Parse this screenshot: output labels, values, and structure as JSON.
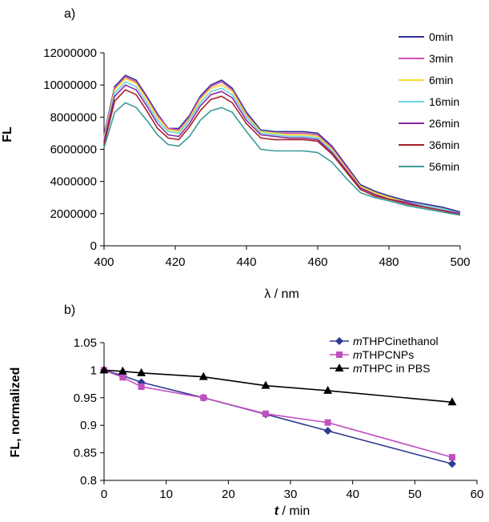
{
  "chart_data": [
    {
      "panel_label": "a)",
      "type": "line",
      "xlabel": "λ / nm",
      "ylabel": "FL",
      "xlim": [
        400,
        500
      ],
      "ylim": [
        0,
        12000000
      ],
      "xticks": [
        "400",
        "420",
        "440",
        "460",
        "480",
        "500"
      ],
      "yticks": [
        "0",
        "2000000",
        "4000000",
        "6000000",
        "8000000",
        "10000000",
        "12000000"
      ],
      "grid": false,
      "legend_position": "top-right",
      "x": [
        400,
        403,
        406,
        409,
        412,
        415,
        418,
        421,
        424,
        427,
        430,
        433,
        436,
        440,
        444,
        448,
        452,
        456,
        460,
        464,
        468,
        472,
        476,
        480,
        485,
        490,
        495,
        500
      ],
      "series": [
        {
          "name": "0min",
          "color": "#2e3192",
          "values": [
            6900000,
            9900000,
            10600000,
            10300000,
            9300000,
            8200000,
            7300000,
            7300000,
            8100000,
            9300000,
            10000000,
            10300000,
            9800000,
            8300000,
            7200000,
            7100000,
            7100000,
            7100000,
            7000000,
            6200000,
            5000000,
            3800000,
            3400000,
            3100000,
            2800000,
            2600000,
            2400000,
            2100000
          ]
        },
        {
          "name": "3min",
          "color": "#d44fb4",
          "values": [
            6800000,
            9800000,
            10500000,
            10200000,
            9200000,
            8100000,
            7300000,
            7200000,
            8000000,
            9200000,
            9900000,
            10200000,
            9700000,
            8200000,
            7100000,
            7000000,
            7000000,
            7000000,
            6900000,
            6100000,
            4900000,
            3700000,
            3300000,
            3000000,
            2700000,
            2500000,
            2300000,
            2000000
          ]
        },
        {
          "name": "6min",
          "color": "#f0dc2a",
          "values": [
            6700000,
            9700000,
            10400000,
            10100000,
            9100000,
            8000000,
            7200000,
            7100000,
            7900000,
            9100000,
            9800000,
            10000000,
            9600000,
            8100000,
            7100000,
            7000000,
            6900000,
            6900000,
            6800000,
            6000000,
            4800000,
            3700000,
            3300000,
            3000000,
            2700000,
            2500000,
            2300000,
            2000000
          ]
        },
        {
          "name": "16min",
          "color": "#6cd4e8",
          "values": [
            6600000,
            9500000,
            10200000,
            9900000,
            8900000,
            7800000,
            7100000,
            7000000,
            7800000,
            8900000,
            9600000,
            9800000,
            9400000,
            8000000,
            7000000,
            6900000,
            6800000,
            6800000,
            6700000,
            5900000,
            4700000,
            3600000,
            3200000,
            2900000,
            2700000,
            2500000,
            2300000,
            2000000
          ]
        },
        {
          "name": "26min",
          "color": "#8a2a9a",
          "values": [
            6500000,
            9300000,
            10000000,
            9700000,
            8700000,
            7600000,
            6900000,
            6800000,
            7600000,
            8700000,
            9400000,
            9600000,
            9200000,
            7800000,
            6900000,
            6800000,
            6700000,
            6700000,
            6600000,
            5800000,
            4700000,
            3600000,
            3200000,
            2900000,
            2700000,
            2400000,
            2200000,
            2000000
          ]
        },
        {
          "name": "36min",
          "color": "#a8202a",
          "values": [
            6300000,
            9000000,
            9700000,
            9400000,
            8400000,
            7300000,
            6700000,
            6600000,
            7400000,
            8400000,
            9100000,
            9300000,
            8900000,
            7600000,
            6700000,
            6600000,
            6600000,
            6600000,
            6500000,
            5700000,
            4600000,
            3500000,
            3100000,
            2900000,
            2600000,
            2400000,
            2200000,
            1900000
          ]
        },
        {
          "name": "56min",
          "color": "#3a9a96",
          "values": [
            6100000,
            8300000,
            8900000,
            8600000,
            7800000,
            6900000,
            6300000,
            6200000,
            6800000,
            7800000,
            8400000,
            8600000,
            8300000,
            7100000,
            6000000,
            5900000,
            5900000,
            5900000,
            5800000,
            5200000,
            4200000,
            3300000,
            3000000,
            2800000,
            2500000,
            2300000,
            2100000,
            1900000
          ]
        }
      ]
    },
    {
      "panel_label": "b)",
      "type": "line",
      "xlabel_italic": "t",
      "xlabel_rest": " / min",
      "ylabel": "FL, normalized",
      "xlim": [
        0,
        60
      ],
      "ylim": [
        0.8,
        1.05
      ],
      "xticks": [
        "0",
        "10",
        "20",
        "30",
        "40",
        "50",
        "60"
      ],
      "yticks": [
        "0.8",
        "0.85",
        "0.9",
        "0.95",
        "1",
        "1.05"
      ],
      "grid": false,
      "legend_position": "top-right",
      "series": [
        {
          "name_italic": "m",
          "name_rest": "THPCinethanol",
          "color": "#2e3a92",
          "marker": "diamond",
          "x": [
            0,
            3,
            6,
            16,
            26,
            36,
            56
          ],
          "values": [
            1.0,
            0.99,
            0.978,
            0.95,
            0.92,
            0.89,
            0.83
          ]
        },
        {
          "name_italic": "m",
          "name_rest": "THPCNPs",
          "color": "#c050c0",
          "marker": "square",
          "x": [
            0,
            3,
            6,
            16,
            26,
            36,
            56
          ],
          "values": [
            1.0,
            0.987,
            0.97,
            0.95,
            0.921,
            0.905,
            0.842
          ]
        },
        {
          "name_italic": "m",
          "name_rest": "THPC in PBS",
          "color": "#000000",
          "marker": "triangle",
          "x": [
            0,
            3,
            6,
            16,
            26,
            36,
            56
          ],
          "values": [
            1.0,
            0.998,
            0.995,
            0.988,
            0.972,
            0.963,
            0.942
          ]
        }
      ]
    }
  ]
}
